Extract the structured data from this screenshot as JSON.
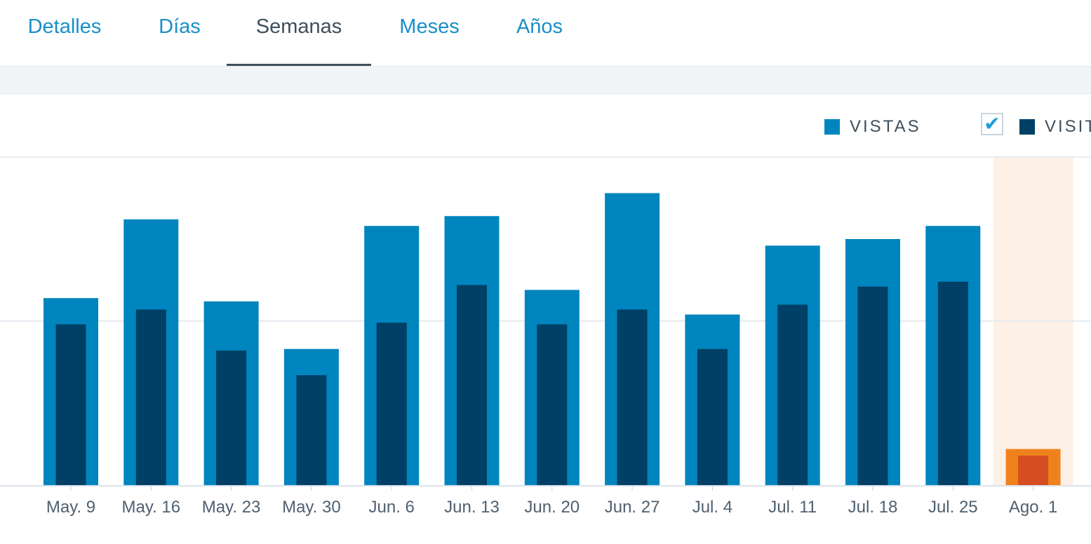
{
  "tabs": [
    {
      "label": "Detalles",
      "active": false
    },
    {
      "label": "Días",
      "active": false
    },
    {
      "label": "Semanas",
      "active": true
    },
    {
      "label": "Meses",
      "active": false
    },
    {
      "label": "Años",
      "active": false
    }
  ],
  "legend": {
    "views_label": "VISTAS",
    "visitors_label": "VISIT",
    "visitors_checked": true
  },
  "colors": {
    "views": "#0085be",
    "visitors": "#003f66",
    "highlight_views": "#f0821e",
    "highlight_visitors": "#d54e21",
    "highlight_bg": "#fdf0e6",
    "tab_link": "#1a8fc9",
    "tab_active": "#3d4f5c"
  },
  "chart_data": {
    "type": "bar",
    "categories": [
      "May. 9",
      "May. 16",
      "May. 23",
      "May. 30",
      "Jun. 6",
      "Jun. 13",
      "Jun. 20",
      "Jun. 27",
      "Jul. 4",
      "Jul. 11",
      "Jul. 18",
      "Jul. 25",
      "Ago. 1"
    ],
    "series": [
      {
        "name": "VISTAS",
        "values": [
          114,
          162,
          112,
          83,
          158,
          164,
          119,
          178,
          104,
          146,
          150,
          158,
          22
        ]
      },
      {
        "name": "VISIT",
        "values": [
          98,
          107,
          82,
          67,
          99,
          122,
          98,
          107,
          83,
          110,
          121,
          124,
          18
        ]
      }
    ],
    "ylim": [
      0,
      200
    ],
    "highlight_category": "Ago. 1",
    "grid": true
  }
}
